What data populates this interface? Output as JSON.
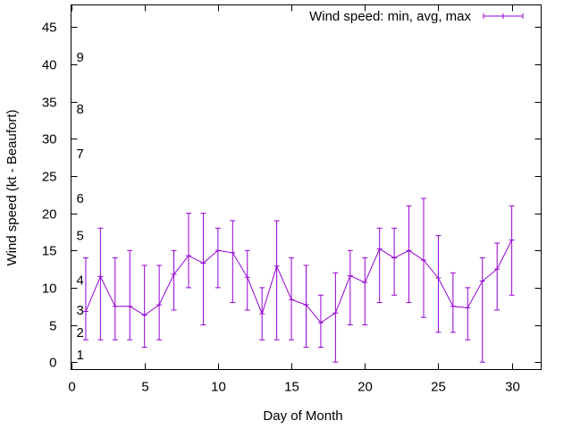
{
  "chart_data": {
    "type": "line",
    "xlabel": "Day of Month",
    "ylabel": "Wind speed (kt - Beaufort)",
    "xlim": [
      0,
      32
    ],
    "ylim": [
      -1,
      48
    ],
    "x_ticks": [
      0,
      5,
      10,
      15,
      20,
      25,
      30
    ],
    "y_ticks": [
      0,
      5,
      10,
      15,
      20,
      25,
      30,
      35,
      40,
      45
    ],
    "beaufort_labels": [
      {
        "label": "1",
        "y": 1
      },
      {
        "label": "2",
        "y": 4
      },
      {
        "label": "3",
        "y": 7
      },
      {
        "label": "4",
        "y": 11
      },
      {
        "label": "5",
        "y": 17
      },
      {
        "label": "6",
        "y": 22
      },
      {
        "label": "7",
        "y": 28
      },
      {
        "label": "8",
        "y": 34
      },
      {
        "label": "9",
        "y": 41
      }
    ],
    "legend": {
      "label": "Wind speed: min, avg, max",
      "position": "top-right"
    },
    "series": [
      {
        "name": "Wind speed: min, avg, max",
        "color": "#9400d3",
        "x": [
          1,
          2,
          3,
          4,
          5,
          6,
          7,
          8,
          9,
          10,
          11,
          12,
          13,
          14,
          15,
          16,
          17,
          18,
          19,
          20,
          21,
          22,
          23,
          24,
          25,
          26,
          27,
          28,
          29,
          30
        ],
        "avg": [
          6.8,
          11.5,
          7.5,
          7.5,
          6.3,
          7.7,
          11.8,
          14.3,
          13.3,
          15.0,
          14.7,
          11.4,
          6.5,
          12.9,
          8.4,
          7.7,
          5.3,
          6.6,
          11.6,
          10.7,
          15.2,
          14.0,
          15.0,
          13.7,
          11.3,
          7.5,
          7.3,
          10.9,
          12.5,
          16.4
        ],
        "min": [
          3,
          3,
          3,
          3,
          2,
          3,
          7,
          10,
          5,
          10,
          8,
          7,
          3,
          3,
          3,
          2,
          2,
          0,
          5,
          5,
          8,
          9,
          8,
          6,
          4,
          4,
          3,
          0,
          7,
          9
        ],
        "max": [
          14,
          18,
          14,
          15,
          13,
          13,
          15,
          20,
          20,
          18,
          19,
          15,
          10,
          19,
          14,
          13,
          9,
          12,
          15,
          14,
          18,
          18,
          21,
          22,
          17,
          12,
          10,
          14,
          16,
          21
        ]
      }
    ],
    "grid": false
  }
}
